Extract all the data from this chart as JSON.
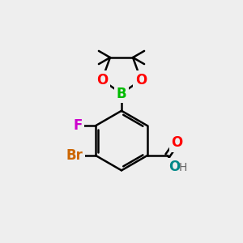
{
  "background_color": "#eeeeee",
  "bond_color": "#000000",
  "bond_width": 1.8,
  "atoms": {
    "B": {
      "color": "#00bb00",
      "fontsize": 12,
      "fontweight": "bold"
    },
    "O": {
      "color": "#ff0000",
      "fontsize": 12,
      "fontweight": "bold"
    },
    "F": {
      "color": "#cc00cc",
      "fontsize": 12,
      "fontweight": "bold"
    },
    "Br": {
      "color": "#cc6600",
      "fontsize": 12,
      "fontweight": "bold"
    },
    "O_carbonyl": {
      "color": "#ff0000",
      "fontsize": 12,
      "fontweight": "bold"
    },
    "O_hydroxyl": {
      "color": "#008888",
      "fontsize": 12,
      "fontweight": "bold"
    },
    "H": {
      "color": "#666666",
      "fontsize": 10
    }
  }
}
